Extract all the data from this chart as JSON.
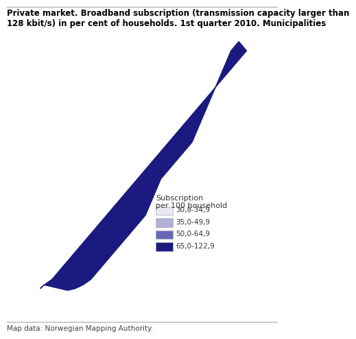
{
  "title": "Private market. Broadband subscription (transmission capacity larger than\n128 kbit/s) in per cent of households. 1st quarter 2010. Municipalities",
  "footer": "Map data: Norwegian Mapping Authority.",
  "legend_title": "Subscription\nper 100 household",
  "legend_items": [
    {
      "label": "30,8-34,9",
      "color": "#e8e8f4"
    },
    {
      "label": "35,0-49,9",
      "color": "#b0b0d8"
    },
    {
      "label": "50,0-64,9",
      "color": "#6868b8"
    },
    {
      "label": "65,0-122,9",
      "color": "#1a1a80"
    }
  ],
  "background_color": "#ffffff",
  "title_fontsize": 8.5,
  "footer_fontsize": 7.5,
  "legend_fontsize": 8
}
